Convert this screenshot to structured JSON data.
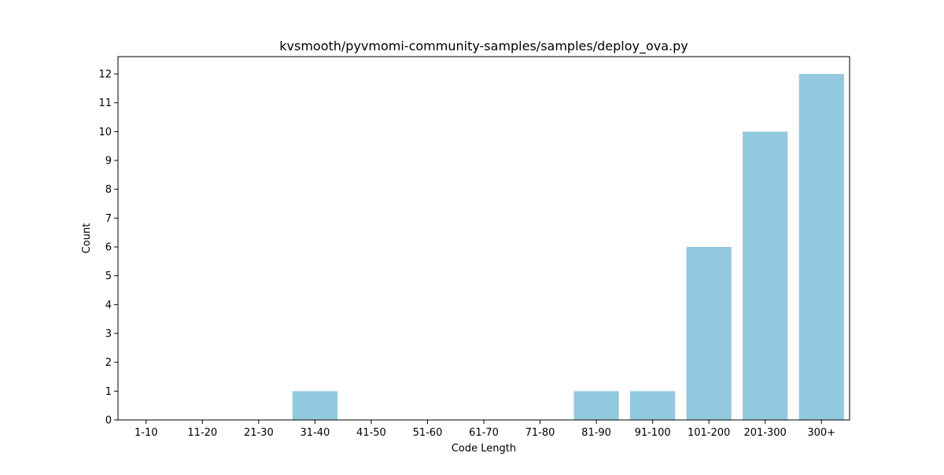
{
  "chart_data": {
    "type": "bar",
    "title": "kvsmooth/pyvmomi-community-samples/samples/deploy_ova.py",
    "xlabel": "Code Length",
    "ylabel": "Count",
    "categories": [
      "1-10",
      "11-20",
      "21-30",
      "31-40",
      "41-50",
      "51-60",
      "61-70",
      "71-80",
      "81-90",
      "91-100",
      "101-200",
      "201-300",
      "300+"
    ],
    "values": [
      0,
      0,
      0,
      1,
      0,
      0,
      0,
      0,
      1,
      1,
      6,
      10,
      12
    ],
    "ylim": [
      0,
      12.6
    ],
    "yticks": [
      0,
      1,
      2,
      3,
      4,
      5,
      6,
      7,
      8,
      9,
      10,
      11,
      12
    ],
    "bar_color": "#92c9df",
    "grid": false,
    "legend": "none"
  }
}
